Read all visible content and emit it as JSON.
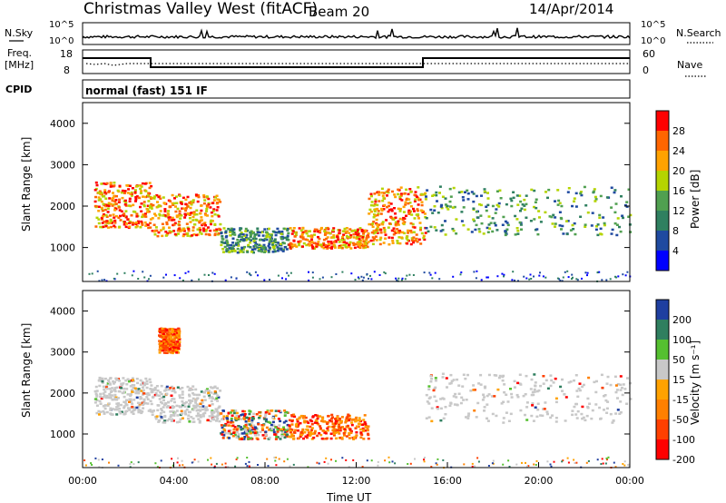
{
  "header": {
    "title": "Christmas Valley West (fitACF)",
    "beam": "Beam 20",
    "date": "14/Apr/2014"
  },
  "top_panels": {
    "nsky_label": "N.Sky",
    "nsky_ticks": [
      "10^5",
      "10^0"
    ],
    "nsearch_label": "N.Search",
    "nsearch_ticks": [
      "10^5",
      "10^0"
    ],
    "freq_label": "Freq.",
    "freq_unit": "[MHz]",
    "freq_ticks": [
      "18",
      "8"
    ],
    "nave_label": "Nave",
    "nave_ticks": [
      "60",
      "0"
    ],
    "cpid_label": "CPID",
    "cpid_text": "normal (fast) 151 IF"
  },
  "chart_data": [
    {
      "type": "heatmap",
      "panel": "power",
      "ylabel": "Slant Range [km]",
      "yticks": [
        1000,
        2000,
        3000,
        4000
      ],
      "ylim": [
        180,
        4500
      ],
      "xlim_hours": [
        0,
        24
      ],
      "colorbar": {
        "label": "Power [dB]",
        "ticks": [
          "28",
          "24",
          "20",
          "16",
          "12",
          "8",
          "4"
        ],
        "colors": [
          "#ff0000",
          "#ff6600",
          "#ffa200",
          "#b5d400",
          "#50a050",
          "#2f8060",
          "#1f4aa0",
          "#0000ff"
        ]
      },
      "regions": [
        {
          "x": [
            0.5,
            3.0
          ],
          "y": [
            1500,
            2600
          ],
          "level": "high"
        },
        {
          "x": [
            3.0,
            6.0
          ],
          "y": [
            1300,
            2300
          ],
          "level": "high"
        },
        {
          "x": [
            6.0,
            9.0
          ],
          "y": [
            900,
            1500
          ],
          "level": "mid"
        },
        {
          "x": [
            9.0,
            12.5
          ],
          "y": [
            1000,
            1500
          ],
          "level": "high"
        },
        {
          "x": [
            12.5,
            15.0
          ],
          "y": [
            1100,
            2500
          ],
          "level": "high"
        },
        {
          "x": [
            15.0,
            24.0
          ],
          "y": [
            1300,
            2500
          ],
          "level": "mid"
        }
      ]
    },
    {
      "type": "heatmap",
      "panel": "velocity",
      "ylabel": "Slant Range [km]",
      "yticks": [
        1000,
        2000,
        3000,
        4000
      ],
      "ylim": [
        180,
        4500
      ],
      "xlim_hours": [
        0,
        24
      ],
      "xlabel": "Time UT",
      "xticks": [
        "00:00",
        "04:00",
        "08:00",
        "12:00",
        "16:00",
        "20:00",
        "00:00"
      ],
      "colorbar": {
        "label": "Velocity [m s⁻¹]",
        "ticks": [
          "200",
          "100",
          "50",
          "15",
          "-15",
          "-50",
          "-100",
          "-200"
        ],
        "colors": [
          "#1f3fa0",
          "#2f7f5f",
          "#55c030",
          "#c8c8c8",
          "#ffa200",
          "#ff8000",
          "#ff4000",
          "#ff0000"
        ]
      },
      "regions": [
        {
          "x": [
            0.5,
            3.0
          ],
          "y": [
            1500,
            2400
          ],
          "level": "ground"
        },
        {
          "x": [
            3.0,
            6.0
          ],
          "y": [
            1300,
            2200
          ],
          "level": "ground"
        },
        {
          "x": [
            3.3,
            4.2
          ],
          "y": [
            3000,
            3600
          ],
          "level": "negative"
        },
        {
          "x": [
            6.0,
            9.0
          ],
          "y": [
            900,
            1600
          ],
          "level": "mixed"
        },
        {
          "x": [
            9.0,
            12.5
          ],
          "y": [
            900,
            1500
          ],
          "level": "negative"
        },
        {
          "x": [
            15.0,
            24.0
          ],
          "y": [
            1300,
            2500
          ],
          "level": "ground"
        }
      ]
    }
  ]
}
